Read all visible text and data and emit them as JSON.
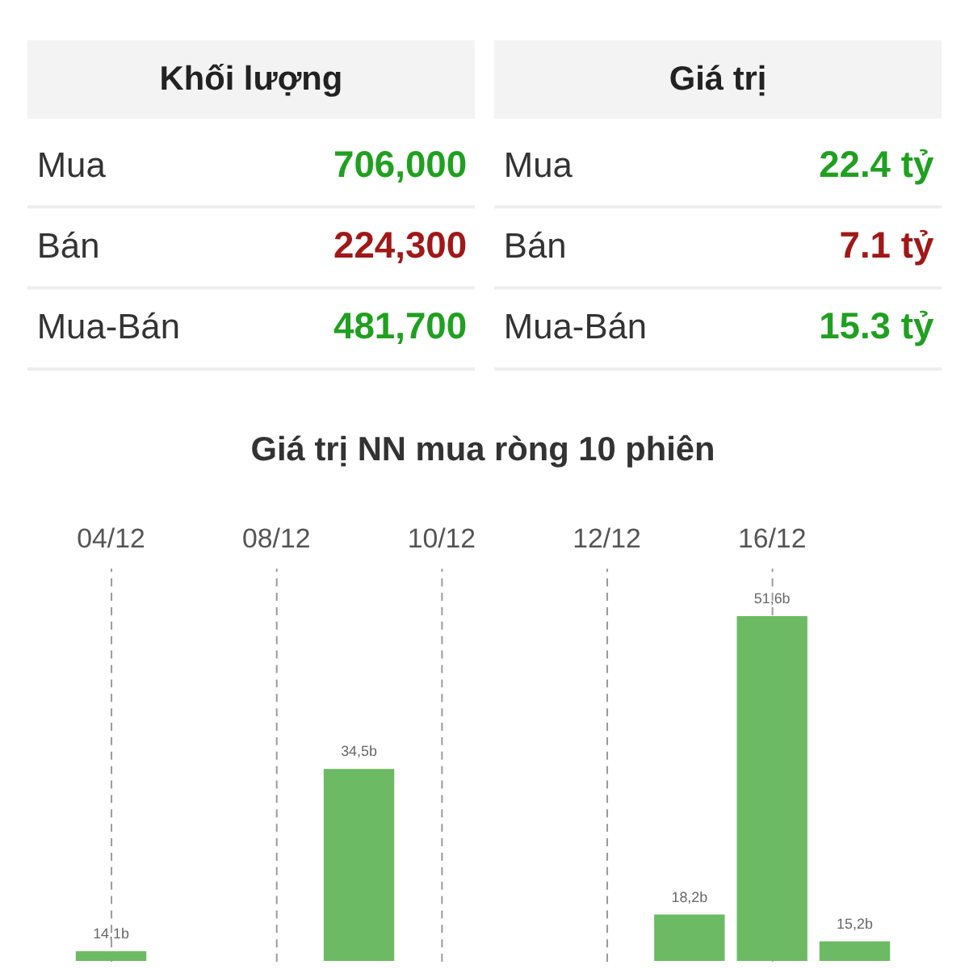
{
  "chart_data": [
    {
      "type": "other",
      "title": "Khối lượng",
      "annotations": [
        "Mua",
        "706,000",
        "Bán",
        "224,300",
        "Mua-Bán",
        "481,700"
      ],
      "colors": [
        "#20a020",
        "#a01818",
        "#20a020"
      ]
    },
    {
      "type": "other",
      "title": "Giá trị",
      "annotations": [
        "Mua",
        "22.4 tỷ",
        "Bán",
        "7.1 tỷ",
        "Mua-Bán",
        "15.3 tỷ"
      ],
      "colors": [
        "#20a020",
        "#a01818",
        "#20a020"
      ]
    },
    {
      "type": "bar",
      "title": "Giá trị NN mua ròng 10 phiên",
      "categories": [
        "04/12",
        null,
        "08/12",
        null,
        "10/12",
        null,
        "12/12",
        null,
        "16/12",
        null
      ],
      "values": [
        14.1,
        null,
        null,
        34.5,
        null,
        null,
        null,
        18.2,
        51.6,
        15.2
      ],
      "value_labels": [
        "14,1b",
        null,
        null,
        "34,5b",
        null,
        null,
        null,
        "18,2b",
        "51,6b",
        "15,2b"
      ],
      "color": "#6cbb64",
      "ylim": [
        13,
        57
      ],
      "grid": "x",
      "tick_labels": "x"
    }
  ]
}
